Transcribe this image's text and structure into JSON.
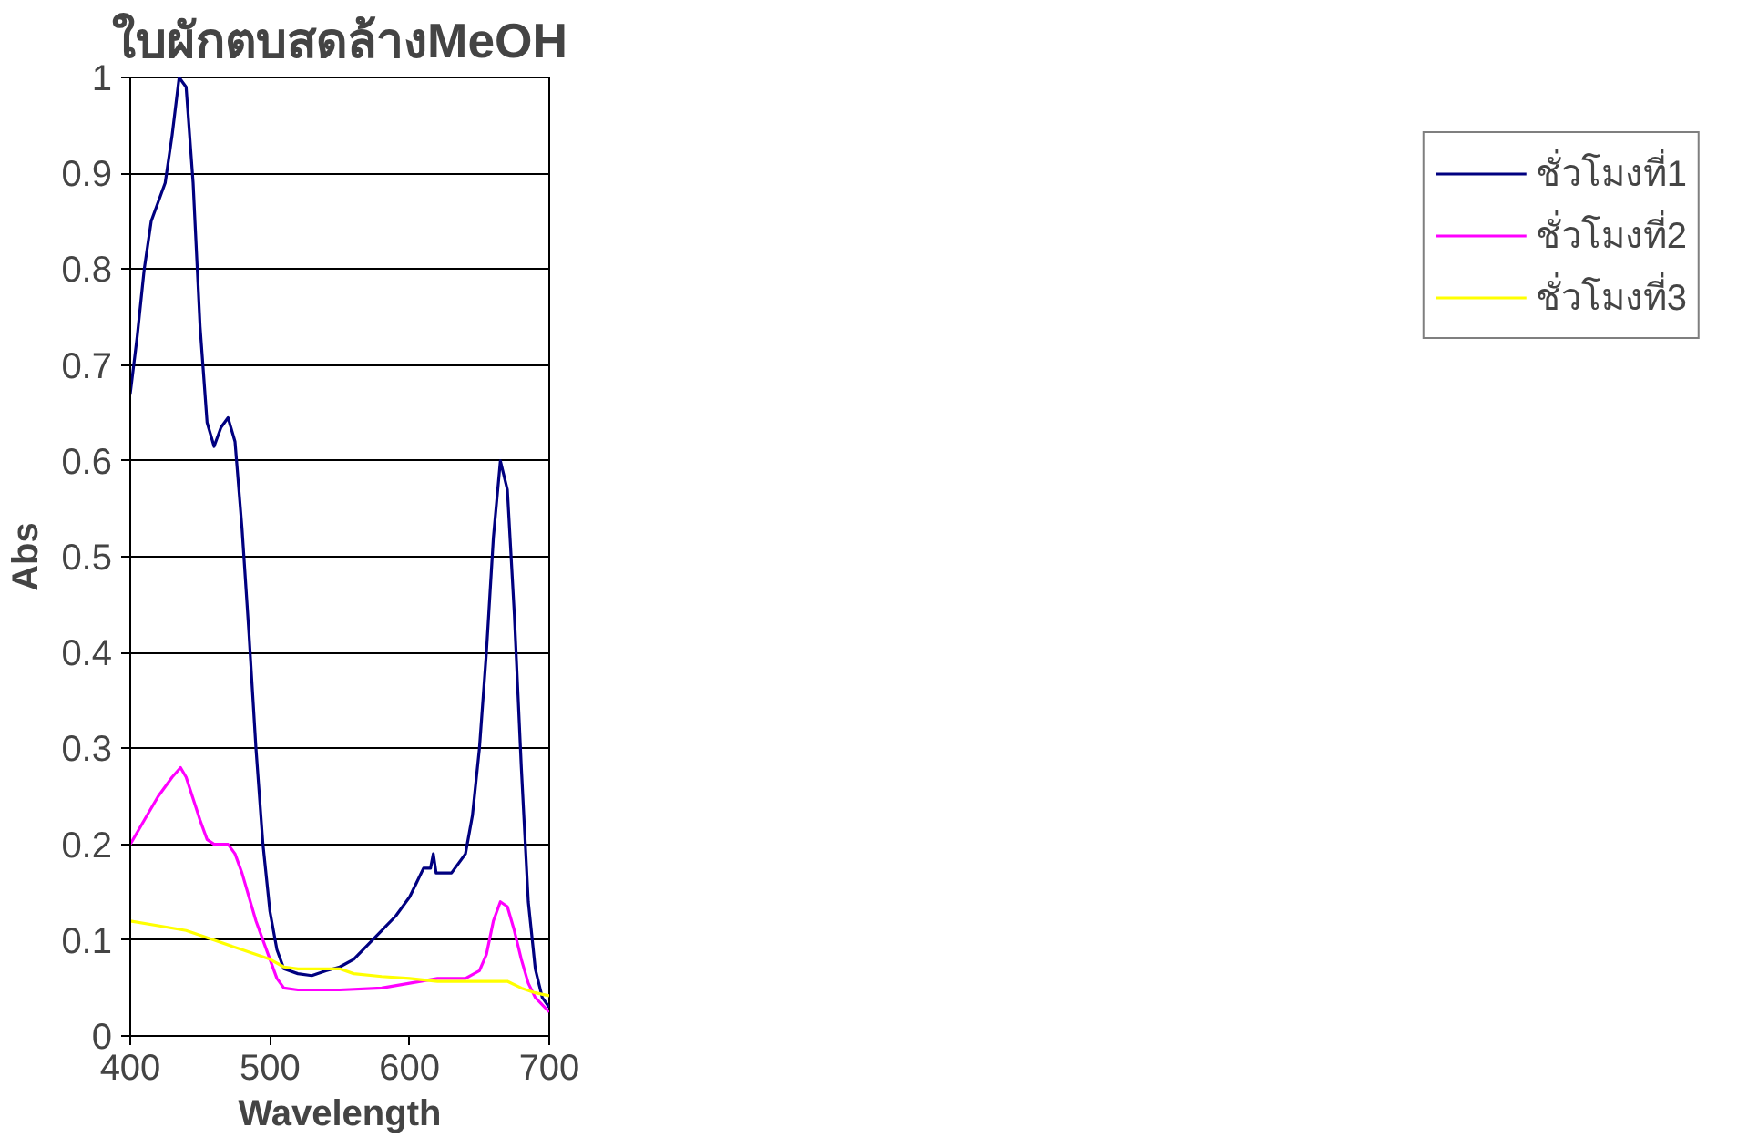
{
  "chart_data": {
    "type": "line",
    "title": "ใบผักตบสดล้างMeOH",
    "xlabel": "Wavelength",
    "ylabel": "Abs",
    "xlim": [
      400,
      700
    ],
    "xticks": [
      400,
      500,
      600,
      700
    ],
    "ylim": [
      0,
      1
    ],
    "yticks": [
      0,
      0.1,
      0.2,
      0.3,
      0.4,
      0.5,
      0.6,
      0.7,
      0.8,
      0.9,
      1
    ],
    "grid": "y",
    "legend": "right",
    "marker": "none",
    "line_style": "solid",
    "series": [
      {
        "name": "ชั่วโมงที่1",
        "color": "#000080",
        "x": [
          400,
          405,
          410,
          415,
          420,
          425,
          430,
          435,
          440,
          445,
          450,
          455,
          460,
          465,
          470,
          475,
          480,
          485,
          490,
          495,
          500,
          505,
          510,
          520,
          530,
          540,
          550,
          560,
          570,
          580,
          590,
          600,
          605,
          610,
          615,
          617,
          619,
          630,
          640,
          645,
          650,
          655,
          660,
          665,
          670,
          675,
          680,
          685,
          690,
          695,
          700
        ],
        "values": [
          0.67,
          0.73,
          0.8,
          0.85,
          0.87,
          0.89,
          0.94,
          1.0,
          0.99,
          0.89,
          0.74,
          0.64,
          0.615,
          0.635,
          0.645,
          0.62,
          0.53,
          0.42,
          0.3,
          0.2,
          0.13,
          0.09,
          0.07,
          0.065,
          0.063,
          0.068,
          0.072,
          0.08,
          0.095,
          0.11,
          0.125,
          0.145,
          0.16,
          0.175,
          0.175,
          0.19,
          0.17,
          0.17,
          0.19,
          0.23,
          0.3,
          0.4,
          0.52,
          0.6,
          0.57,
          0.44,
          0.28,
          0.14,
          0.07,
          0.04,
          0.03
        ]
      },
      {
        "name": "ชั่วโมงที่2",
        "color": "#ff00ff",
        "x": [
          400,
          410,
          420,
          430,
          436,
          440,
          450,
          455,
          460,
          470,
          475,
          480,
          490,
          500,
          505,
          510,
          520,
          550,
          580,
          600,
          620,
          640,
          650,
          655,
          660,
          665,
          670,
          675,
          680,
          685,
          690,
          700
        ],
        "values": [
          0.2,
          0.225,
          0.25,
          0.27,
          0.28,
          0.27,
          0.225,
          0.205,
          0.2,
          0.2,
          0.19,
          0.17,
          0.12,
          0.08,
          0.06,
          0.05,
          0.048,
          0.048,
          0.05,
          0.055,
          0.06,
          0.06,
          0.068,
          0.085,
          0.12,
          0.14,
          0.135,
          0.11,
          0.08,
          0.055,
          0.04,
          0.025
        ]
      },
      {
        "name": "ชั่วโมงที่3",
        "color": "#ffff00",
        "x": [
          400,
          420,
          440,
          460,
          480,
          500,
          510,
          520,
          550,
          560,
          580,
          600,
          620,
          640,
          670,
          680,
          690,
          700
        ],
        "values": [
          0.12,
          0.115,
          0.11,
          0.1,
          0.09,
          0.08,
          0.072,
          0.07,
          0.07,
          0.065,
          0.062,
          0.06,
          0.057,
          0.057,
          0.057,
          0.05,
          0.045,
          0.042
        ]
      }
    ]
  }
}
